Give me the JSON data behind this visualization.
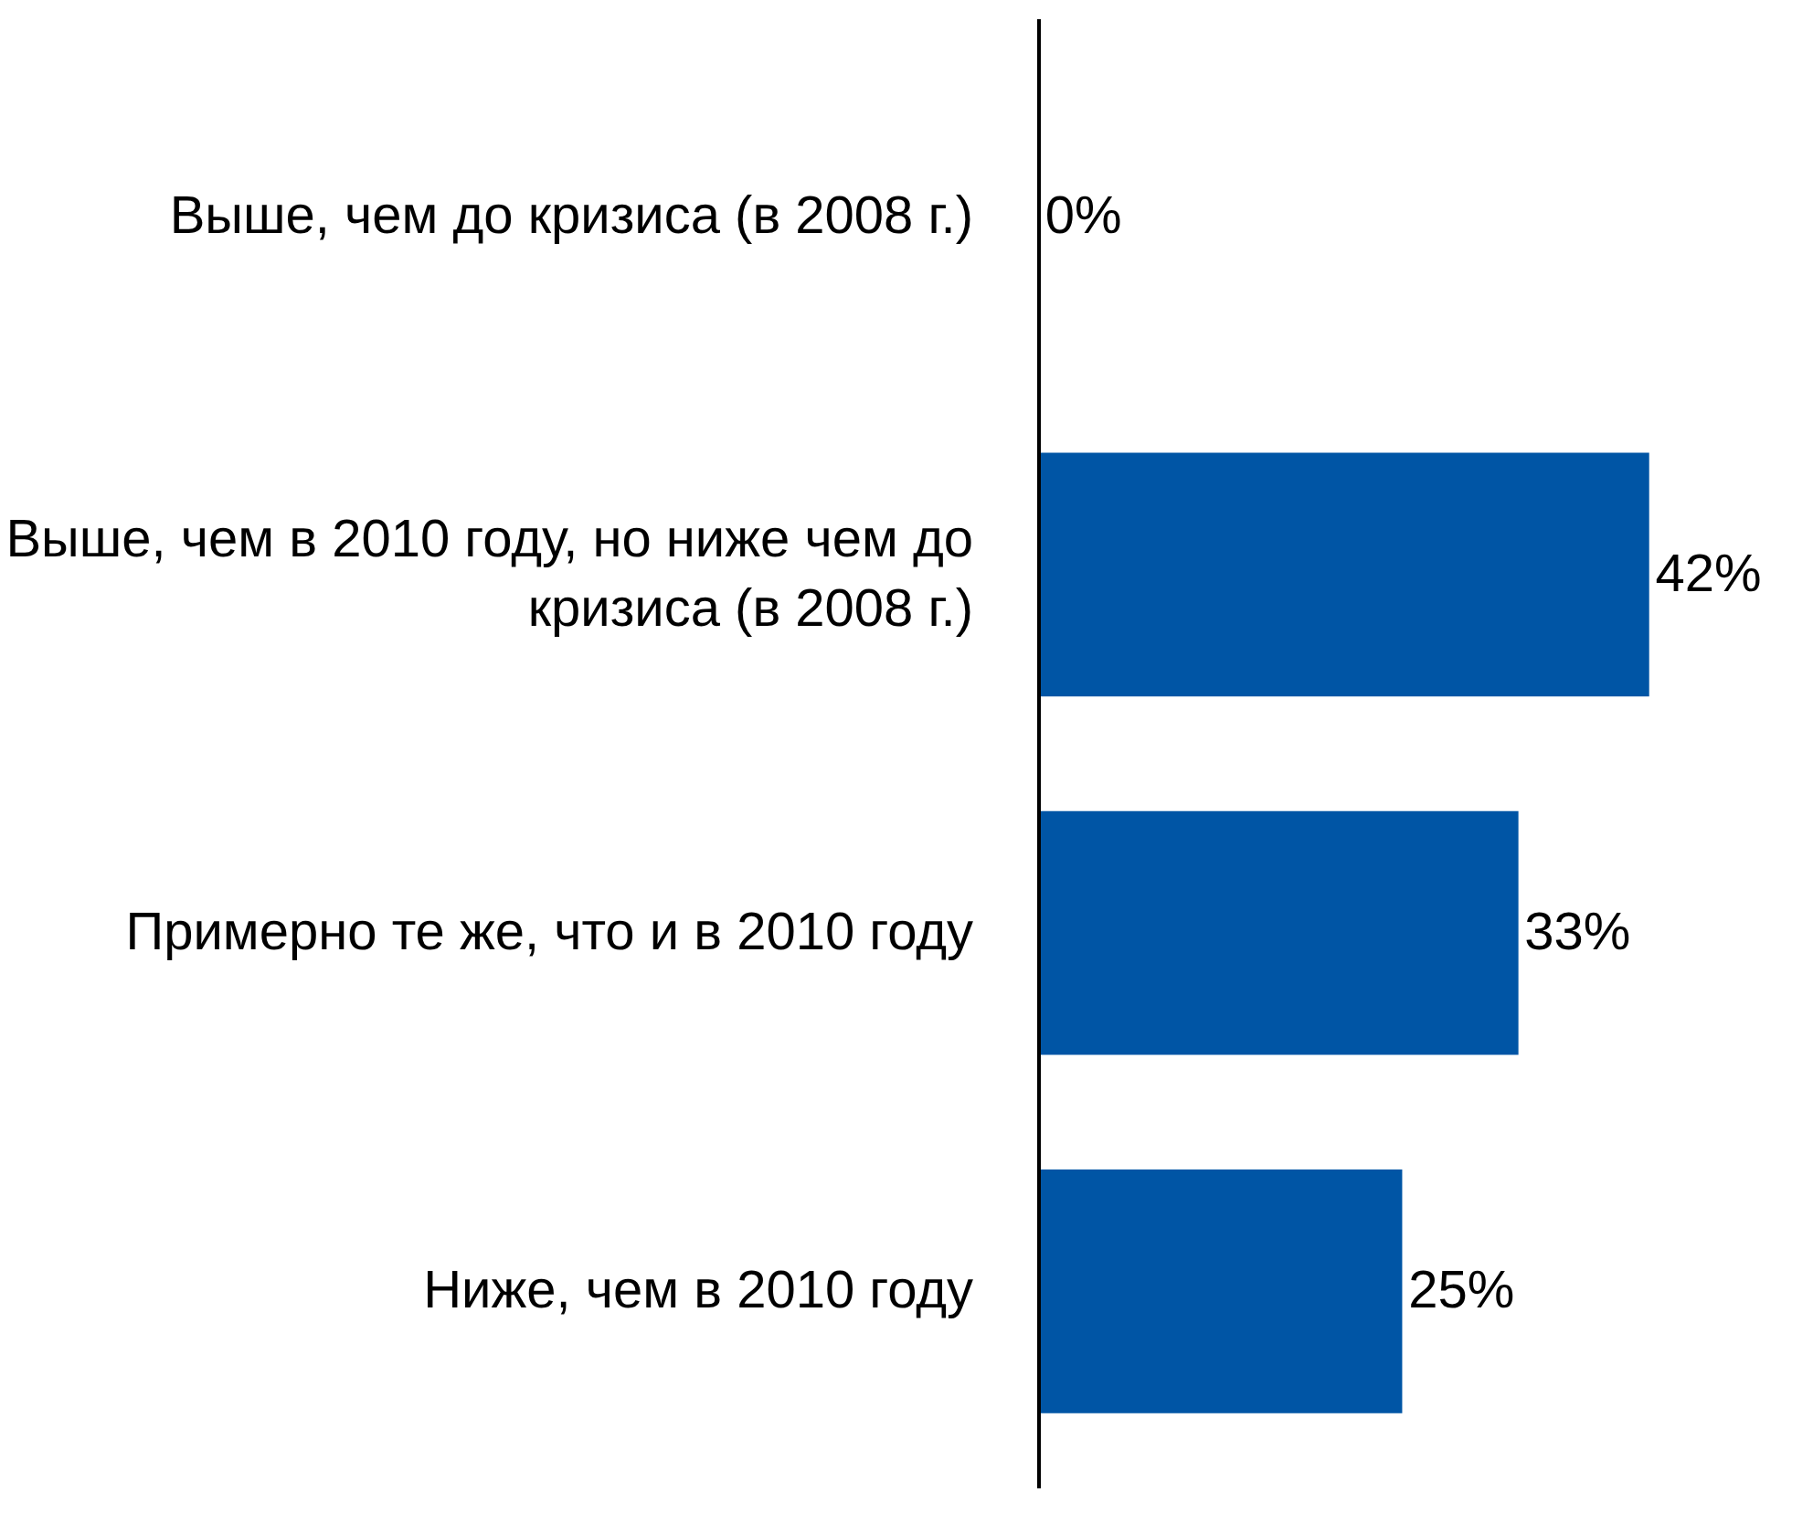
{
  "chart_data": {
    "type": "bar",
    "orientation": "horizontal",
    "categories": [
      "Выше, чем до кризиса (в 2008 г.)",
      "Выше, чем в 2010 году, но ниже чем до кризиса (в 2008 г.)",
      "Примерно те же, что и в 2010 году",
      "Ниже, чем в 2010 году"
    ],
    "values": [
      0,
      42,
      33,
      25
    ],
    "value_labels": [
      "0%",
      "42%",
      "33%",
      "25%"
    ],
    "color": "#0055a5",
    "grid": false
  }
}
